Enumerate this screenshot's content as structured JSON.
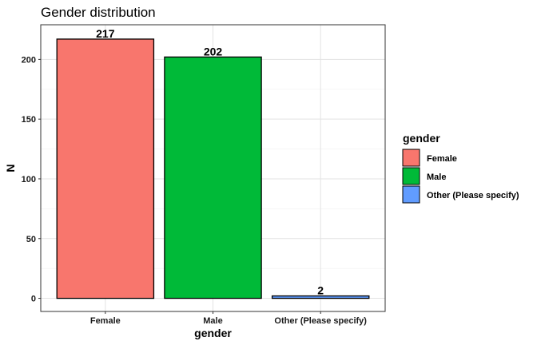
{
  "chart_data": {
    "type": "bar",
    "title": "Gender distribution",
    "xlabel": "gender",
    "ylabel": "N",
    "categories": [
      "Female",
      "Male",
      "Other (Please specify)"
    ],
    "values": [
      217,
      202,
      2
    ],
    "data_labels": [
      "217",
      "202",
      "2"
    ],
    "colors": [
      "#F8766D",
      "#00BA38",
      "#619CFF"
    ],
    "ylim": [
      -11,
      229
    ],
    "yticks": [
      0,
      50,
      100,
      150,
      200
    ],
    "ytick_labels": [
      "0",
      "50",
      "100",
      "150",
      "200"
    ],
    "grid": true,
    "legend": {
      "title": "gender",
      "position": "right",
      "items": [
        "Female",
        "Male",
        "Other (Please specify)"
      ]
    }
  }
}
